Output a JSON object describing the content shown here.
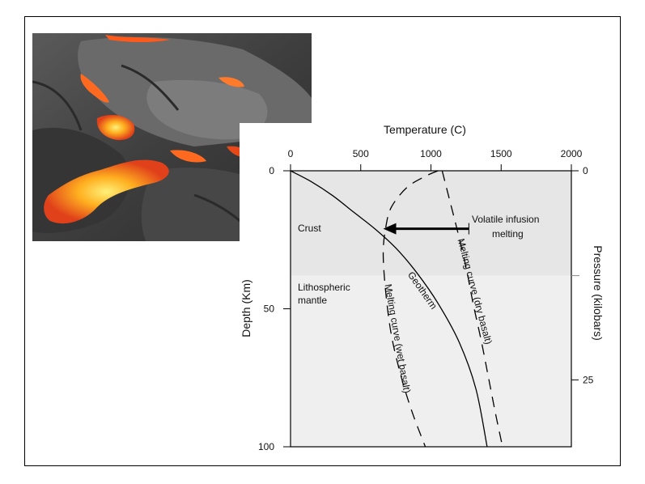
{
  "photo": {
    "subject": "lava-flow-photo",
    "colors": {
      "rock": "#4a4a4a",
      "rock_light": "#8a8a8a",
      "glow": "#ffb020",
      "glow_hot": "#ffe060",
      "ember": "#ff4a1a"
    }
  },
  "chart_data": {
    "type": "line",
    "title": "",
    "xlabel": "Temperature (C)",
    "ylabel": "Depth (Km)",
    "y2label": "Pressure (kilobars)",
    "xlim": [
      0,
      2000
    ],
    "ylim": [
      100,
      0
    ],
    "y2lim": [
      0,
      33
    ],
    "x_ticks": [
      "0",
      "500",
      "1000",
      "1500",
      "2000"
    ],
    "y_ticks": [
      "0",
      "50",
      "100"
    ],
    "y2_ticks": [
      "0",
      "25"
    ],
    "zones": [
      {
        "name": "Crust",
        "depth": [
          0,
          38
        ],
        "color": "#e6e6e6"
      },
      {
        "name": "Lithospheric mantle",
        "depth": [
          38,
          100
        ],
        "color": "#efefef"
      }
    ],
    "zone_labels": [
      "Crust",
      "Lithospheric",
      "mantle"
    ],
    "series": [
      {
        "name": "Geotherm",
        "style": "solid",
        "x": [
          0,
          150,
          300,
          450,
          600,
          750,
          900,
          1050,
          1200,
          1320,
          1400
        ],
        "y": [
          0,
          4,
          9,
          15,
          21,
          28,
          37,
          48,
          62,
          79,
          100
        ]
      },
      {
        "name": "Melting curve (wet basalt)",
        "style": "dashed",
        "x": [
          1050,
          960,
          830,
          720,
          680,
          660,
          680,
          720,
          790,
          870,
          960
        ],
        "y": [
          0,
          2,
          6,
          13,
          20,
          30,
          45,
          60,
          75,
          88,
          100
        ]
      },
      {
        "name": "Melting curve (dry basalt)",
        "style": "dashed",
        "x": [
          1080,
          1130,
          1190,
          1250,
          1300,
          1360,
          1410,
          1460,
          1510
        ],
        "y": [
          0,
          10,
          22,
          35,
          48,
          62,
          75,
          88,
          100
        ]
      }
    ],
    "annotations": [
      {
        "text_lines": [
          "Volatile infusion",
          "melting"
        ],
        "arrow_from": [
          1270,
          21
        ],
        "arrow_to": [
          660,
          21
        ]
      },
      {
        "text": "Geotherm",
        "at": [
          920,
          44
        ],
        "rotate": 55
      },
      {
        "text": "Melting curve (wet basalt)",
        "at": [
          740,
          61
        ],
        "rotate": 80
      },
      {
        "text": "Melting curve (dry basalt)",
        "at": [
          1290,
          44
        ],
        "rotate": 75
      }
    ],
    "grid": false
  }
}
